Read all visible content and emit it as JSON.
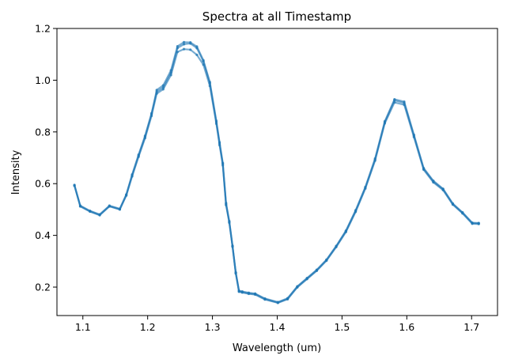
{
  "chart_data": {
    "type": "line",
    "title": "Spectra at all Timestamp",
    "xlabel": "Wavelength (um)",
    "ylabel": "Intensity",
    "xlim": [
      1.06,
      1.74
    ],
    "ylim": [
      0.09,
      1.2
    ],
    "xticks": [
      1.1,
      1.2,
      1.3,
      1.4,
      1.5,
      1.6,
      1.7
    ],
    "xtick_labels": [
      "1.1",
      "1.2",
      "1.3",
      "1.4",
      "1.5",
      "1.6",
      "1.7"
    ],
    "yticks": [
      0.2,
      0.4,
      0.6,
      0.8,
      1.0,
      1.2
    ],
    "ytick_labels": [
      "0.2",
      "0.4",
      "0.6",
      "0.8",
      "1.0",
      "1.2"
    ],
    "grid": false,
    "color": "#1f77b4",
    "x": [
      1.087,
      1.096,
      1.111,
      1.126,
      1.141,
      1.157,
      1.167,
      1.176,
      1.186,
      1.196,
      1.206,
      1.214,
      1.224,
      1.236,
      1.246,
      1.256,
      1.266,
      1.276,
      1.286,
      1.296,
      1.306,
      1.311,
      1.316,
      1.321,
      1.326,
      1.331,
      1.336,
      1.341,
      1.346,
      1.356,
      1.366,
      1.381,
      1.401,
      1.416,
      1.431,
      1.446,
      1.461,
      1.476,
      1.491,
      1.506,
      1.521,
      1.536,
      1.551,
      1.566,
      1.581,
      1.596,
      1.611,
      1.626,
      1.641,
      1.656,
      1.671,
      1.686,
      1.701,
      1.711
    ],
    "series": [
      {
        "values": [
          0.595,
          0.515,
          0.495,
          0.481,
          0.515,
          0.503,
          0.558,
          0.635,
          0.712,
          0.785,
          0.872,
          0.955,
          0.972,
          1.029,
          1.124,
          1.139,
          1.142,
          1.124,
          1.073,
          0.988,
          0.838,
          0.755,
          0.676,
          0.521,
          0.452,
          0.358,
          0.255,
          0.184,
          0.181,
          0.176,
          0.173,
          0.154,
          0.14,
          0.155,
          0.201,
          0.233,
          0.265,
          0.304,
          0.357,
          0.416,
          0.494,
          0.584,
          0.693,
          0.837,
          0.922,
          0.912,
          0.785,
          0.657,
          0.608,
          0.578,
          0.521,
          0.487,
          0.447,
          0.446
        ]
      },
      {
        "values": [
          0.593,
          0.513,
          0.493,
          0.479,
          0.513,
          0.501,
          0.556,
          0.631,
          0.708,
          0.781,
          0.868,
          0.962,
          0.98,
          1.038,
          1.131,
          1.147,
          1.146,
          1.13,
          1.077,
          0.993,
          0.843,
          0.76,
          0.68,
          0.525,
          0.455,
          0.36,
          0.257,
          0.186,
          0.183,
          0.178,
          0.175,
          0.156,
          0.142,
          0.157,
          0.203,
          0.235,
          0.267,
          0.306,
          0.359,
          0.418,
          0.497,
          0.587,
          0.697,
          0.841,
          0.926,
          0.917,
          0.789,
          0.66,
          0.611,
          0.58,
          0.523,
          0.489,
          0.449,
          0.448
        ]
      },
      {
        "values": [
          0.592,
          0.512,
          0.492,
          0.478,
          0.512,
          0.5,
          0.554,
          0.628,
          0.704,
          0.776,
          0.862,
          0.948,
          0.965,
          1.02,
          1.109,
          1.12,
          1.118,
          1.098,
          1.06,
          0.978,
          0.832,
          0.749,
          0.671,
          0.517,
          0.449,
          0.356,
          0.253,
          0.182,
          0.179,
          0.174,
          0.171,
          0.152,
          0.139,
          0.153,
          0.199,
          0.231,
          0.263,
          0.302,
          0.355,
          0.413,
          0.491,
          0.581,
          0.689,
          0.833,
          0.914,
          0.905,
          0.78,
          0.654,
          0.605,
          0.575,
          0.519,
          0.485,
          0.445,
          0.444
        ]
      }
    ]
  }
}
